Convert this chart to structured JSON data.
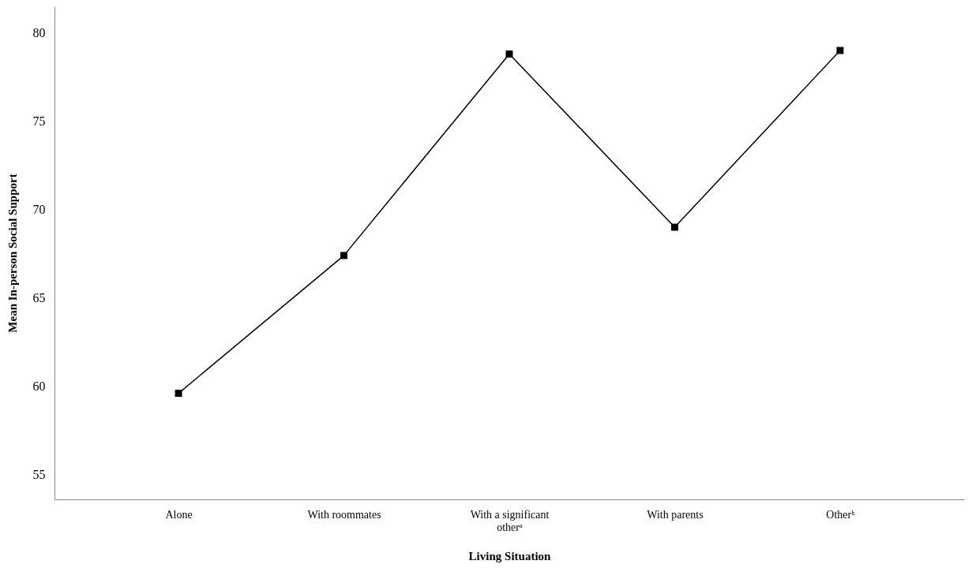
{
  "chart_data": {
    "type": "line",
    "xlabel": "Living Situation",
    "ylabel": "Mean In-person Social Support",
    "categories": [
      "Alone",
      "With roommates",
      "With a significant otherᵃ",
      "With parents",
      "Otherᵇ"
    ],
    "series": [
      {
        "color": "#000000",
        "values": [
          59.6,
          67.4,
          78.8,
          69.0,
          79.0
        ]
      }
    ],
    "ylim": [
      53.6,
      81.5
    ],
    "yticks": [
      55,
      60,
      65,
      70,
      75,
      80
    ],
    "grid": false,
    "marker": "square",
    "line_style": "solid"
  }
}
